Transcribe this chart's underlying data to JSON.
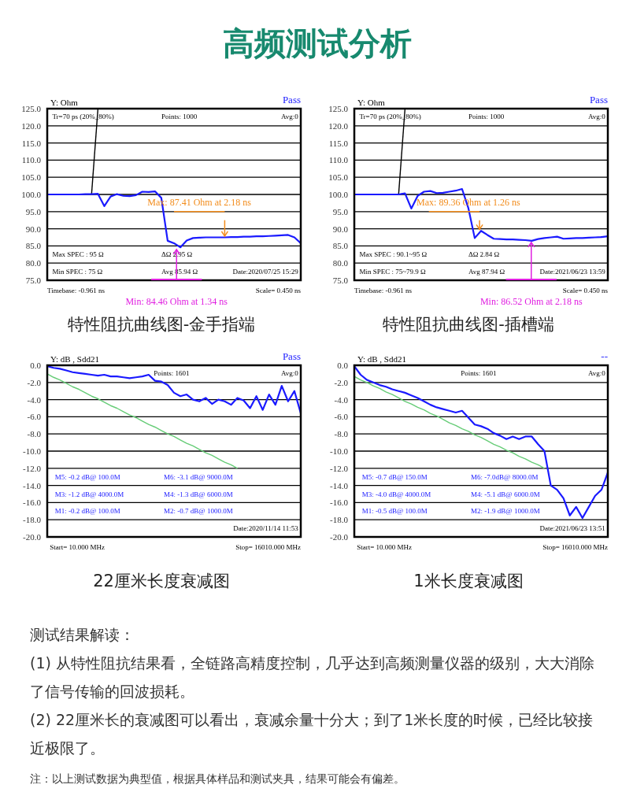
{
  "chart_data": [
    {
      "type": "other",
      "title": "高频测试分析"
    },
    {
      "type": "line",
      "title": "特性阻抗曲线图-金手指端",
      "ylabel": "Y: Ohm",
      "categories": [
        null,
        null,
        null,
        null,
        null,
        null,
        null,
        null,
        null,
        null,
        null,
        null,
        null,
        null,
        null,
        null,
        null,
        null,
        null,
        null,
        null,
        null,
        null,
        null,
        null,
        null,
        null,
        null,
        null,
        null,
        null,
        null,
        null,
        null,
        null,
        null,
        null,
        null,
        null,
        null,
        null
      ],
      "ylim": [
        75,
        125
      ],
      "yticks": [
        {
          "value": 75,
          "label": "75.0"
        },
        {
          "value": 80,
          "label": "80.0"
        },
        {
          "value": 85,
          "label": "85.0"
        },
        {
          "value": 90,
          "label": "90.0"
        },
        {
          "value": 95,
          "label": "95.0"
        },
        {
          "value": 100,
          "label": "100.0"
        },
        {
          "value": 105,
          "label": "105.0"
        },
        {
          "value": 110,
          "label": "110.0"
        },
        {
          "value": 115,
          "label": "115.0"
        },
        {
          "value": 120,
          "label": "120.0"
        },
        {
          "value": 125,
          "label": "125.0"
        }
      ],
      "grid": true,
      "tick_labels": "y",
      "series": [
        {
          "color": "#000000",
          "values": [
            null,
            null,
            null,
            null,
            null,
            null,
            null,
            100.2,
            125,
            null,
            null,
            null,
            null,
            null,
            null,
            null,
            null,
            null,
            null,
            null,
            null,
            null,
            null,
            null,
            null,
            null,
            null,
            null,
            null,
            null,
            null,
            null,
            null,
            null,
            null,
            null,
            null,
            null,
            null,
            null,
            null
          ]
        },
        {
          "color": "#1a1aff",
          "values": [
            100,
            100,
            100,
            100,
            100,
            100,
            100.1,
            100.1,
            100.2,
            96.6,
            99.4,
            100.1,
            99.6,
            99.5,
            99.8,
            100.8,
            100.7,
            100.9,
            99.0,
            86.5,
            85.8,
            84.6,
            86.6,
            87.3,
            87.4,
            87.5,
            87.5,
            87.5,
            87.5,
            87.6,
            87.6,
            87.7,
            87.7,
            87.8,
            87.8,
            87.9,
            88.0,
            88.1,
            88.2,
            87.5,
            85.8
          ]
        }
      ],
      "annotations": [
        "Pass",
        "Tr=70  ps (20%_80%)",
        "Points:  1000",
        "Avg:0",
        "Max SPEC : 95 Ω",
        "Min  SPEC : 75 Ω",
        "ΔΩ   2.95   Ω",
        "Avg   85.94   Ω",
        "Date:2020/07/25 15:29",
        "Timebase: -0.961  ns",
        "Scale=   0.450 ns",
        "Max: 87.41  Ohm at 2.18  ns",
        "Min: 84.46  Ohm at 1.34  ns"
      ]
    },
    {
      "type": "line",
      "title": "特性阻抗曲线图-插槽端",
      "ylabel": "Y: Ohm",
      "categories": [
        null,
        null,
        null,
        null,
        null,
        null,
        null,
        null,
        null,
        null,
        null,
        null,
        null,
        null,
        null,
        null,
        null,
        null,
        null,
        null,
        null,
        null,
        null,
        null,
        null,
        null,
        null,
        null,
        null,
        null,
        null,
        null,
        null,
        null,
        null,
        null,
        null,
        null,
        null,
        null,
        null
      ],
      "ylim": [
        75,
        125
      ],
      "yticks": [
        {
          "value": 75,
          "label": "75.0"
        },
        {
          "value": 80,
          "label": "80.0"
        },
        {
          "value": 85,
          "label": "85.0"
        },
        {
          "value": 90,
          "label": "90.0"
        },
        {
          "value": 95,
          "label": "95.0"
        },
        {
          "value": 100,
          "label": "100.0"
        },
        {
          "value": 105,
          "label": "105.0"
        },
        {
          "value": 110,
          "label": "110.0"
        },
        {
          "value": 115,
          "label": "115.0"
        },
        {
          "value": 120,
          "label": "120.0"
        },
        {
          "value": 125,
          "label": "125.0"
        }
      ],
      "grid": true,
      "tick_labels": "y",
      "series": [
        {
          "color": "#000000",
          "values": [
            null,
            null,
            null,
            null,
            null,
            null,
            null,
            100.2,
            125,
            null,
            null,
            null,
            null,
            null,
            null,
            null,
            null,
            null,
            null,
            null,
            null,
            null,
            null,
            null,
            null,
            null,
            null,
            null,
            null,
            null,
            null,
            null,
            null,
            null,
            null,
            null,
            null,
            null,
            null,
            null,
            null
          ]
        },
        {
          "color": "#1a1aff",
          "values": [
            100,
            100,
            100,
            100,
            100,
            100,
            100,
            100,
            100.3,
            95.9,
            99.6,
            100.8,
            101.0,
            100.4,
            100.5,
            100.8,
            101.1,
            101.6,
            96.0,
            87.3,
            89.4,
            88.2,
            87.1,
            87.0,
            86.9,
            86.9,
            86.8,
            86.7,
            86.5,
            87.0,
            87.3,
            87.5,
            87.7,
            87.1,
            87.2,
            87.3,
            87.3,
            87.4,
            87.5,
            87.6,
            87.8
          ]
        }
      ],
      "annotations": [
        "Pass",
        "Tr=70  ps (20%_80%)",
        "Points:  1000",
        "Avg:0",
        "Max SPEC : 90.1~95 Ω",
        "Min  SPEC : 75~79.9  Ω",
        "ΔΩ   2.84   Ω",
        "Avg   87.94   Ω",
        "Date:2021/06/23 13:59",
        "Timebase: -0.961  ns",
        "Scale=   0.450 ns",
        "Max: 89.36  Ohm at 1.26  ns",
        "Min: 86.52  Ohm at 2.18  ns"
      ]
    },
    {
      "type": "line",
      "title": "22厘米长度衰减图",
      "ylabel": "Y: dB , Sdd21",
      "categories": [
        null,
        null,
        null,
        null,
        null,
        null,
        null,
        null,
        null,
        null,
        null,
        null,
        null,
        null,
        null,
        null,
        null,
        null,
        null,
        null,
        null,
        null,
        null,
        null,
        null,
        null,
        null,
        null,
        null,
        null,
        null,
        null,
        null,
        null,
        null,
        null,
        null,
        null,
        null,
        null,
        null
      ],
      "ylim": [
        -20,
        0
      ],
      "yticks": [
        {
          "value": -20,
          "label": "-20.0"
        },
        {
          "value": -18,
          "label": "-18.0"
        },
        {
          "value": -16,
          "label": "-16.0"
        },
        {
          "value": -14,
          "label": "-14.0"
        },
        {
          "value": -12,
          "label": "-12.0"
        },
        {
          "value": -10,
          "label": "-10.0"
        },
        {
          "value": -8,
          "label": "-8.0"
        },
        {
          "value": -6,
          "label": "-6.0"
        },
        {
          "value": -4,
          "label": "-4.0"
        },
        {
          "value": -2,
          "label": "-2.0"
        },
        {
          "value": 0,
          "label": "0.0"
        }
      ],
      "grid": true,
      "tick_labels": "y",
      "series": [
        {
          "color": "#66cc77",
          "values": [
            -1.0,
            -1.4,
            -1.7,
            -2.1,
            -2.5,
            -2.8,
            -3.2,
            -3.6,
            -3.9,
            -4.3,
            -4.7,
            -5.0,
            -5.4,
            -5.8,
            -6.1,
            -6.5,
            -6.9,
            -7.2,
            -7.6,
            -8.0,
            -8.3,
            -8.7,
            -9.1,
            -9.4,
            -9.8,
            -10.2,
            -10.5,
            -10.9,
            -11.3,
            -11.6,
            -12.0,
            null,
            null,
            null,
            null,
            null,
            null,
            null,
            null,
            null,
            null
          ]
        },
        {
          "color": "#1a1aff",
          "values": [
            -0.1,
            -0.3,
            -0.4,
            -0.6,
            -0.8,
            -0.9,
            -1.0,
            -1.1,
            -1.2,
            -1.1,
            -1.3,
            -1.3,
            -1.4,
            -1.5,
            -1.4,
            -1.3,
            -1.1,
            -1.8,
            -1.9,
            -2.3,
            -3.2,
            -3.6,
            -3.4,
            -4.0,
            -4.2,
            -3.8,
            -4.5,
            -4.0,
            -4.2,
            -4.6,
            -3.8,
            -4.1,
            -5.0,
            -3.6,
            -5.2,
            -3.4,
            -4.6,
            -2.4,
            -4.2,
            -3.0,
            -5.6
          ]
        }
      ],
      "annotations": [
        "Pass",
        "Points: 1601",
        "Avg:0",
        "M5: -0.2 dB@ 100.0M",
        "M3: -1.2 dB@ 4000.0M",
        "M1: -0.2 dB@ 100.0M",
        "M6: -3.1 dB@ 9000.0M",
        "M4: -1.3 dB@ 6000.0M",
        "M2: -0.7 dB@ 1000.0M",
        "Date:2020/11/14 11:53",
        "Start= 10.000 MHz",
        "Stop=  16010.000 MHz"
      ]
    },
    {
      "type": "line",
      "title": "1米长度衰减图",
      "ylabel": "Y: dB , Sdd21",
      "categories": [
        null,
        null,
        null,
        null,
        null,
        null,
        null,
        null,
        null,
        null,
        null,
        null,
        null,
        null,
        null,
        null,
        null,
        null,
        null,
        null,
        null,
        null,
        null,
        null,
        null,
        null,
        null,
        null,
        null,
        null,
        null,
        null,
        null,
        null,
        null,
        null,
        null,
        null,
        null,
        null,
        null
      ],
      "ylim": [
        -20,
        0
      ],
      "yticks": [
        {
          "value": -20,
          "label": "-20.0"
        },
        {
          "value": -18,
          "label": "-18.0"
        },
        {
          "value": -16,
          "label": "-16.0"
        },
        {
          "value": -14,
          "label": "-14.0"
        },
        {
          "value": -12,
          "label": "-12.0"
        },
        {
          "value": -10,
          "label": "-10.0"
        },
        {
          "value": -8,
          "label": "-8.0"
        },
        {
          "value": -6,
          "label": "-6.0"
        },
        {
          "value": -4,
          "label": "-4.0"
        },
        {
          "value": -2,
          "label": "-2.0"
        },
        {
          "value": 0,
          "label": "0.0"
        }
      ],
      "grid": true,
      "tick_labels": "y",
      "series": [
        {
          "color": "#66cc77",
          "values": [
            -1.3,
            -1.7,
            -2.0,
            -2.4,
            -2.7,
            -3.1,
            -3.4,
            -3.8,
            -4.2,
            -4.5,
            -4.9,
            -5.2,
            -5.6,
            -5.9,
            -6.3,
            -6.7,
            -7.0,
            -7.4,
            -7.7,
            -8.1,
            -8.4,
            -8.8,
            -9.2,
            -9.5,
            -9.9,
            -10.2,
            -10.6,
            -10.9,
            -11.3,
            -11.6,
            -12.0,
            null,
            null,
            null,
            null,
            null,
            null,
            null,
            null,
            null,
            null
          ]
        },
        {
          "color": "#1a1aff",
          "values": [
            -0.1,
            -1.1,
            -1.7,
            -2.0,
            -2.3,
            -2.5,
            -2.8,
            -3.0,
            -3.2,
            -3.5,
            -3.8,
            -4.2,
            -4.6,
            -4.9,
            -5.1,
            -5.3,
            -5.5,
            -5.3,
            -6.1,
            -6.9,
            -7.1,
            -7.4,
            -7.9,
            -8.2,
            -8.6,
            -8.3,
            -8.6,
            -8.3,
            -8.3,
            -9.2,
            -10.0,
            -14.0,
            -14.5,
            -15.5,
            -17.5,
            -16.5,
            -17.8,
            -16.5,
            -15.2,
            -14.5,
            -12.5
          ]
        }
      ],
      "annotations": [
        "--",
        "Points: 1601",
        "Avg:0",
        "M5: -0.7 dB@ 150.0M",
        "M3: -4.0 dB@ 4000.0M",
        "M1: -0.5 dB@ 100.0M",
        "M6: -7.0dB@ 8000.0M",
        "M4: -5.1 dB@ 6000.0M",
        "M2: -1.9 dB@ 1000.0M",
        "Date:2021/06/23 13:51",
        "Start= 10.000 MHz",
        "Stop=  16010.000 MHz"
      ]
    },
    {
      "type": "other",
      "title": "测试结果解读：",
      "annotations": [
        "(1) 从特性阻抗结果看，全链路高精度控制，几乎达到高频测量仪器的级别，大大消除了信号传输的回波损耗。",
        "(2) 22厘米长的衰减图可以看出，衰减余量十分大；到了1米长度的时候，已经比较接近极限了。",
        "注：以上测试数据为典型值，根据具体样品和测试夹具，结果可能会有偏差。"
      ]
    }
  ]
}
